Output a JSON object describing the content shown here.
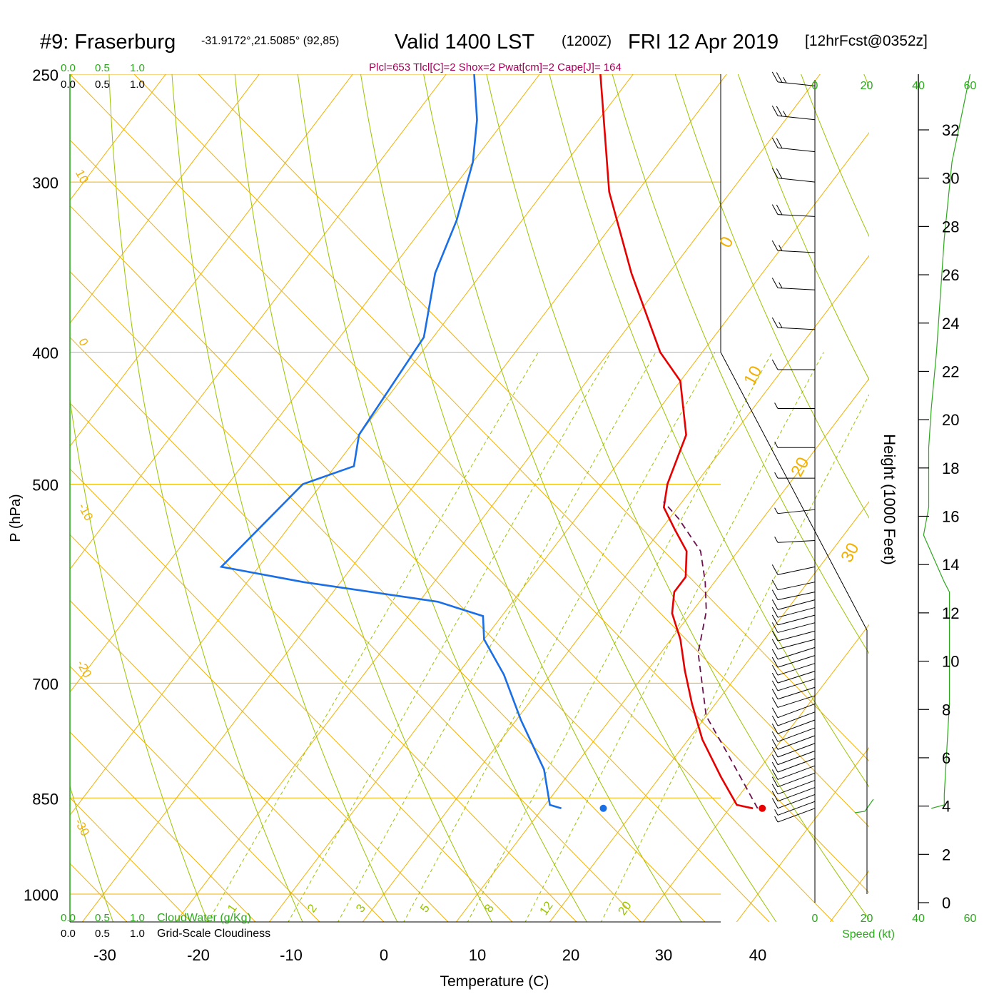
{
  "header": {
    "title": "#9: Fraserburg",
    "coords": "-31.9172°,21.5085° (92,85)",
    "valid": "Valid 1400 LST",
    "utc": "(1200Z)",
    "date": "FRI 12 Apr 2019",
    "forecast": "[12hrFcst@0352z]",
    "indices": "Plcl=653 Tlcl[C]=2 Shox=2 Pwat[cm]=2 Cape[J]= 164"
  },
  "labels": {
    "temperature": "Temperature (C)",
    "pressure": "P (hPa)",
    "height": "Height (1000 Feet)",
    "cloudwater": "CloudWater (g/Kg)",
    "cloudiness": "Grid-Scale Cloudiness",
    "speed": "Speed (kt)"
  },
  "scale_labels": [
    "0.0",
    "0.5",
    "1.0"
  ],
  "colors": {
    "isobar": "#f2b100",
    "isotherm": "#f2b100",
    "dry_adiabat": "#99c400",
    "mixing_ratio": "#99c400",
    "temperature": "#e60000",
    "dewpoint": "#1a6ee6",
    "parcel": "#6b0f4d",
    "speed": "#2ca81c",
    "indices": "#a8005a"
  },
  "chart_data": {
    "type": "line",
    "subtype": "skew-t log-p sounding",
    "xlabel": "Temperature (C)",
    "ylabel": "P (hPa)",
    "x_ticks": [
      -30,
      -20,
      -10,
      0,
      10,
      20,
      30,
      40
    ],
    "p_ticks": [
      250,
      300,
      400,
      500,
      700,
      850,
      1000
    ],
    "height_ticks": [
      0,
      2,
      4,
      6,
      8,
      10,
      12,
      14,
      16,
      18,
      20,
      22,
      24,
      26,
      28,
      30,
      32
    ],
    "speed_ticks": [
      0,
      20,
      40,
      60
    ],
    "isotherm_labels": [
      "10",
      "0",
      "-10",
      "-20",
      "-30",
      "0",
      "10",
      "20",
      "30"
    ],
    "mixing_ratio_labels": [
      "1",
      "2",
      "3",
      "5",
      "8",
      "12",
      "20"
    ],
    "series": [
      {
        "name": "temperature",
        "points": [
          [
            32.5,
            865
          ],
          [
            30.5,
            860
          ],
          [
            26.5,
            820
          ],
          [
            21.5,
            770
          ],
          [
            17.5,
            725
          ],
          [
            14.0,
            685
          ],
          [
            11.0,
            650
          ],
          [
            8.0,
            622
          ],
          [
            6.5,
            600
          ],
          [
            6.5,
            585
          ],
          [
            4.5,
            560
          ],
          [
            1.5,
            540
          ],
          [
            -1.5,
            520
          ],
          [
            -3.0,
            500
          ],
          [
            -5.0,
            460
          ],
          [
            -10.0,
            420
          ],
          [
            -14.5,
            400
          ],
          [
            -24.0,
            350
          ],
          [
            -33.0,
            305
          ],
          [
            -43.5,
            250
          ]
        ]
      },
      {
        "name": "dewpoint",
        "points": [
          [
            12.0,
            865
          ],
          [
            10.5,
            860
          ],
          [
            7.0,
            810
          ],
          [
            0.5,
            745
          ],
          [
            -5.0,
            690
          ],
          [
            -10.0,
            650
          ],
          [
            -12.0,
            625
          ],
          [
            -18.0,
            610
          ],
          [
            -34.0,
            590
          ],
          [
            -44.0,
            575
          ],
          [
            -42.0,
            500
          ],
          [
            -38.0,
            485
          ],
          [
            -40.0,
            460
          ],
          [
            -41.0,
            390
          ],
          [
            -45.0,
            350
          ],
          [
            -47.0,
            320
          ],
          [
            -50.0,
            290
          ],
          [
            -53.0,
            270
          ],
          [
            -57.0,
            250
          ]
        ]
      },
      {
        "name": "parcel",
        "points": [
          [
            33.0,
            865
          ],
          [
            25.5,
            790
          ],
          [
            20.0,
            740
          ],
          [
            14.0,
            665
          ],
          [
            11.5,
            620
          ],
          [
            9.0,
            590
          ],
          [
            6.0,
            560
          ],
          [
            1.0,
            530
          ],
          [
            -2.0,
            515
          ]
        ]
      }
    ],
    "surface_points": [
      {
        "name": "dewpoint-dot",
        "temp": 16.5,
        "p": 865
      },
      {
        "name": "temperature-dot",
        "temp": 33.5,
        "p": 865
      }
    ],
    "speed_profile": [
      [
        5,
        865
      ],
      [
        10,
        860
      ],
      [
        10,
        845
      ],
      [
        12,
        725
      ],
      [
        12,
        600
      ],
      [
        10,
        590
      ],
      [
        2,
        545
      ],
      [
        4,
        520
      ],
      [
        4,
        470
      ],
      [
        5,
        440
      ],
      [
        7,
        400
      ],
      [
        10,
        330
      ],
      [
        13,
        290
      ],
      [
        20,
        250
      ]
    ],
    "winds": {
      "unit": "kt",
      "barbs": [
        {
          "p": 255,
          "dir": 280,
          "kt": 25
        },
        {
          "p": 270,
          "dir": 280,
          "kt": 25
        },
        {
          "p": 285,
          "dir": 280,
          "kt": 20
        },
        {
          "p": 300,
          "dir": 280,
          "kt": 20
        },
        {
          "p": 318,
          "dir": 275,
          "kt": 20
        },
        {
          "p": 338,
          "dir": 275,
          "kt": 15
        },
        {
          "p": 360,
          "dir": 275,
          "kt": 15
        },
        {
          "p": 385,
          "dir": 275,
          "kt": 15
        },
        {
          "p": 412,
          "dir": 270,
          "kt": 10
        },
        {
          "p": 440,
          "dir": 270,
          "kt": 5
        },
        {
          "p": 470,
          "dir": 270,
          "kt": 5
        },
        {
          "p": 495,
          "dir": 270,
          "kt": 5
        },
        {
          "p": 522,
          "dir": 260,
          "kt": 5
        },
        {
          "p": 550,
          "dir": 265,
          "kt": 5
        },
        {
          "p": 575,
          "dir": 250,
          "kt": 10
        },
        {
          "p": 590,
          "dir": 250,
          "kt": 10
        },
        {
          "p": 600,
          "dir": 250,
          "kt": 10
        },
        {
          "p": 608,
          "dir": 245,
          "kt": 10
        },
        {
          "p": 616,
          "dir": 245,
          "kt": 10
        },
        {
          "p": 624,
          "dir": 245,
          "kt": 10
        },
        {
          "p": 632,
          "dir": 245,
          "kt": 10
        },
        {
          "p": 641,
          "dir": 245,
          "kt": 10
        },
        {
          "p": 650,
          "dir": 245,
          "kt": 10
        },
        {
          "p": 659,
          "dir": 240,
          "kt": 10
        },
        {
          "p": 668,
          "dir": 240,
          "kt": 10
        },
        {
          "p": 677,
          "dir": 240,
          "kt": 10
        },
        {
          "p": 686,
          "dir": 240,
          "kt": 10
        },
        {
          "p": 695,
          "dir": 240,
          "kt": 10
        },
        {
          "p": 705,
          "dir": 240,
          "kt": 10
        },
        {
          "p": 715,
          "dir": 240,
          "kt": 10
        },
        {
          "p": 725,
          "dir": 235,
          "kt": 10
        },
        {
          "p": 735,
          "dir": 235,
          "kt": 10
        },
        {
          "p": 745,
          "dir": 235,
          "kt": 10
        },
        {
          "p": 755,
          "dir": 235,
          "kt": 10
        },
        {
          "p": 765,
          "dir": 235,
          "kt": 10
        },
        {
          "p": 775,
          "dir": 235,
          "kt": 10
        },
        {
          "p": 785,
          "dir": 235,
          "kt": 10
        },
        {
          "p": 795,
          "dir": 235,
          "kt": 10
        },
        {
          "p": 805,
          "dir": 235,
          "kt": 10
        },
        {
          "p": 815,
          "dir": 235,
          "kt": 10
        },
        {
          "p": 825,
          "dir": 235,
          "kt": 10
        },
        {
          "p": 835,
          "dir": 235,
          "kt": 10
        },
        {
          "p": 845,
          "dir": 235,
          "kt": 10
        },
        {
          "p": 855,
          "dir": 235,
          "kt": 5
        },
        {
          "p": 865,
          "dir": 235,
          "kt": 5
        }
      ]
    }
  }
}
